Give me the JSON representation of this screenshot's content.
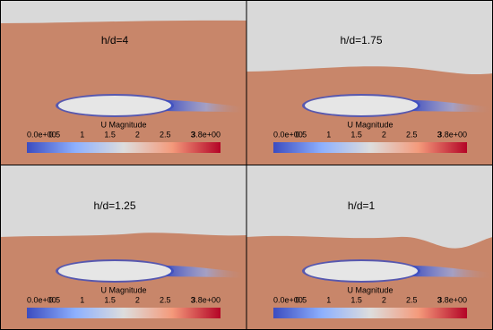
{
  "panels": [
    {
      "label": "h/d=4"
    },
    {
      "label": "h/d=1.75"
    },
    {
      "label": "h/d=1.25"
    },
    {
      "label": "h/d=1"
    }
  ],
  "colorbar": {
    "title": "U Magnitude",
    "tick_labels": [
      "0.0e+00",
      "0.5",
      "1",
      "1.5",
      "2",
      "2.5",
      "3",
      "3.8e+00"
    ]
  }
}
